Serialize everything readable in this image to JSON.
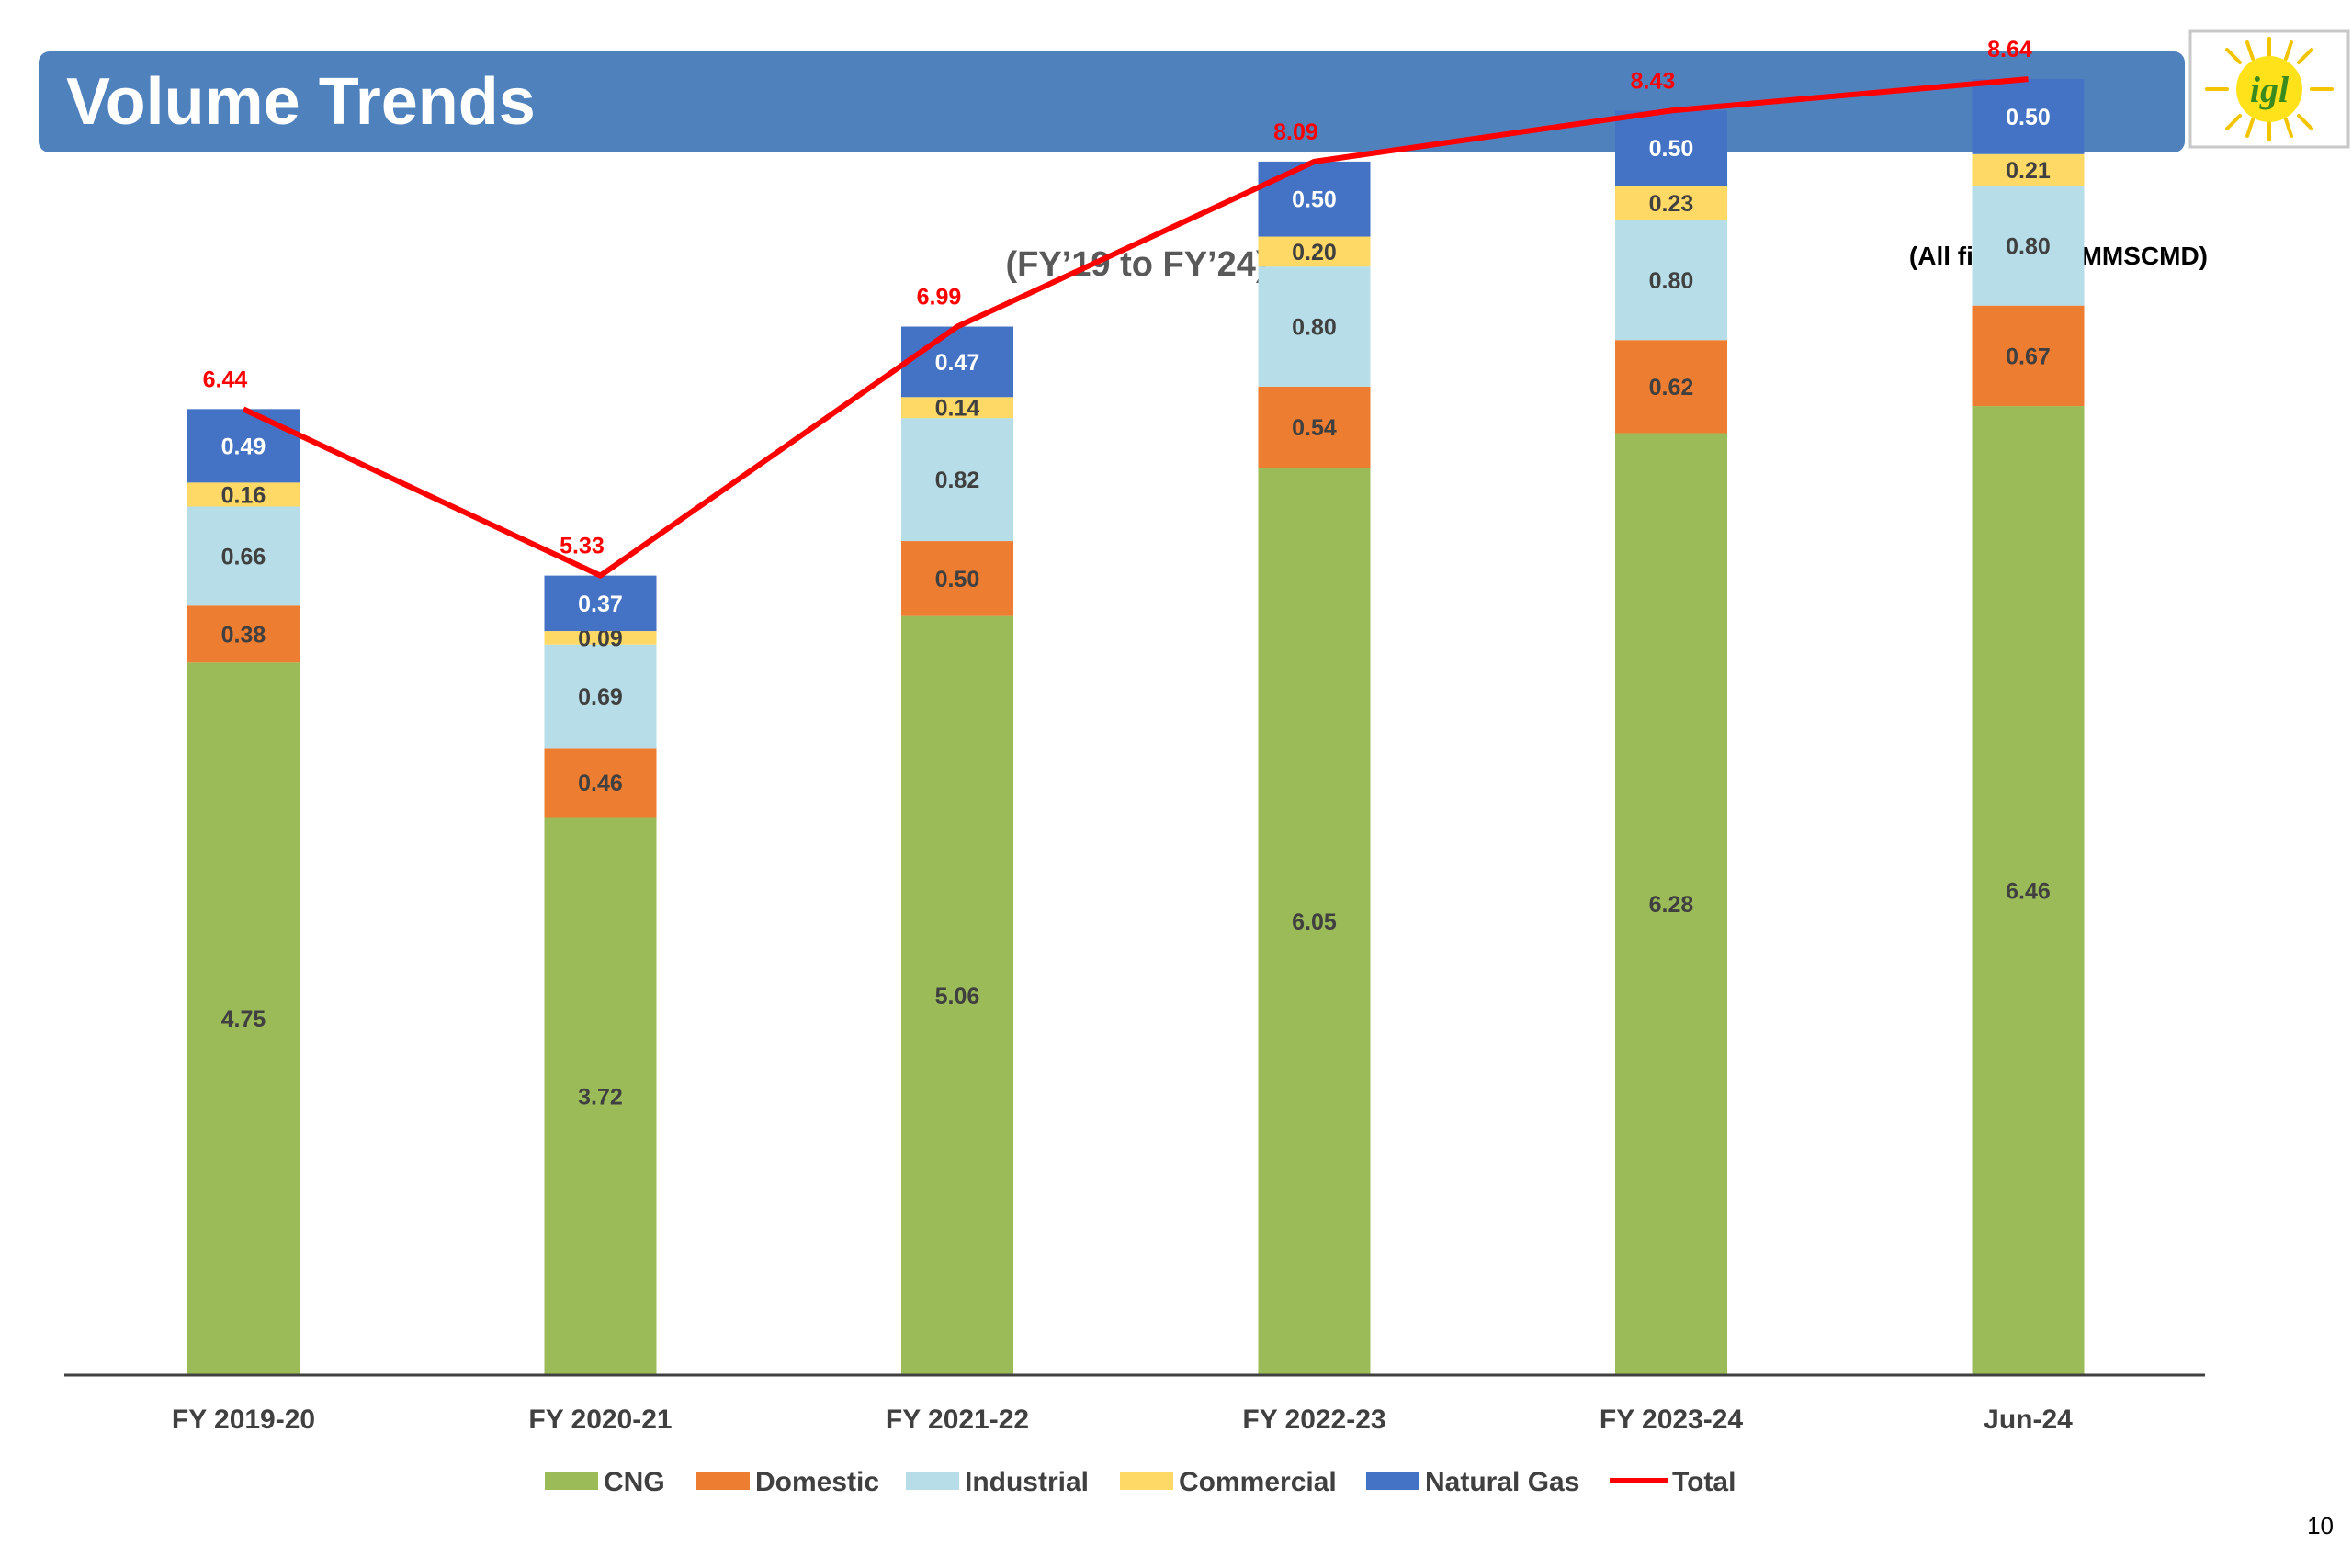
{
  "slide": {
    "title": "Volume Trends",
    "page_number": "10",
    "logo_text": "igl"
  },
  "chart_data": {
    "type": "bar",
    "stacked": true,
    "title": "(FY’19 to FY’24)",
    "units_note": "(All figures in MMSCMD)",
    "xlabel": "",
    "ylabel": "",
    "ylim": [
      0,
      10
    ],
    "grid": false,
    "legend_position": "bottom",
    "categories": [
      "FY 2019-20",
      "FY 2020-21",
      "FY 2021-22",
      "FY 2022-23",
      "FY 2023-24",
      "Jun-24"
    ],
    "series": [
      {
        "name": "CNG",
        "color": "#9bbb59",
        "label_color": "#404040",
        "values": [
          4.75,
          3.72,
          5.06,
          6.05,
          6.28,
          6.46
        ],
        "labels": [
          "4.75",
          "3.72",
          "5.06",
          "6.05",
          "6.28",
          "6.46"
        ]
      },
      {
        "name": "Domestic",
        "color": "#ed7d31",
        "label_color": "#404040",
        "values": [
          0.38,
          0.46,
          0.5,
          0.54,
          0.62,
          0.67
        ],
        "labels": [
          "0.38",
          "0.46",
          "0.50",
          "0.54",
          "0.62",
          "0.67"
        ]
      },
      {
        "name": "Industrial",
        "color": "#b7dee8",
        "label_color": "#404040",
        "values": [
          0.66,
          0.69,
          0.82,
          0.8,
          0.8,
          0.8
        ],
        "labels": [
          "0.66",
          "0.69",
          "0.82",
          "0.80",
          "0.80",
          "0.80"
        ]
      },
      {
        "name": "Commercial",
        "color": "#ffd966",
        "label_color": "#404040",
        "values": [
          0.16,
          0.09,
          0.14,
          0.2,
          0.23,
          0.21
        ],
        "labels": [
          "0.16",
          "0.09",
          "0.14",
          "0.20",
          "0.23",
          "0.21"
        ]
      },
      {
        "name": "Natural Gas",
        "color": "#4472c4",
        "label_color": "#ffffff",
        "values": [
          0.49,
          0.37,
          0.47,
          0.5,
          0.5,
          0.5
        ],
        "labels": [
          "0.49",
          "0.37",
          "0.47",
          "0.50",
          "0.50",
          "0.50"
        ]
      }
    ],
    "total_line": {
      "name": "Total",
      "color": "#ff0000",
      "values": [
        6.44,
        5.33,
        6.99,
        8.09,
        8.43,
        8.64
      ],
      "labels": [
        "6.44",
        "5.33",
        "6.99",
        "8.09",
        "8.43",
        "8.64"
      ]
    }
  }
}
